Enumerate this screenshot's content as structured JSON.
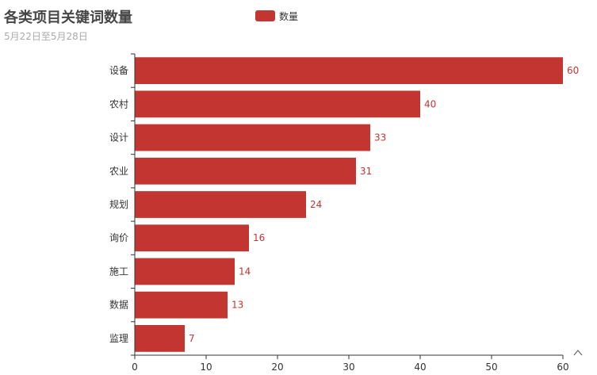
{
  "header": {
    "title": "各类项目关键词数量",
    "subtitle": "5月22日至5月28日"
  },
  "legend": {
    "label": "数量"
  },
  "colors": {
    "bar": "#c23531",
    "axis": "#333333",
    "grid": "#e6e6e6"
  },
  "scroll_icon": "^",
  "chart_data": {
    "type": "bar",
    "orientation": "horizontal",
    "categories": [
      "设备",
      "农村",
      "设计",
      "农业",
      "规划",
      "询价",
      "施工",
      "数据",
      "监理"
    ],
    "series": [
      {
        "name": "数量",
        "values": [
          60,
          40,
          33,
          31,
          24,
          16,
          14,
          13,
          7
        ]
      }
    ],
    "x_ticks": [
      0,
      10,
      20,
      30,
      40,
      50,
      60
    ],
    "xlim": [
      0,
      60
    ],
    "grid": false,
    "legend_position": "top-center",
    "data_labels": true
  }
}
